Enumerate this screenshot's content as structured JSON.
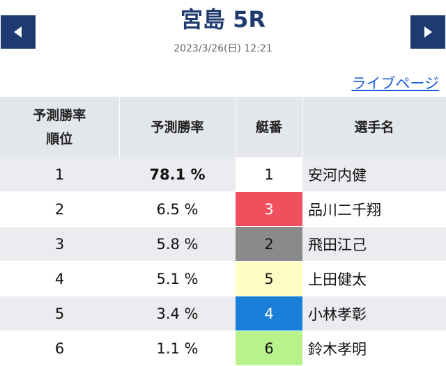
{
  "header": {
    "title": "宮島 5R",
    "datetime": "2023/3/26(日) 12:21",
    "prev_icon": "arrow-left-icon",
    "next_icon": "arrow-right-icon"
  },
  "live_link": "ライブページ",
  "table": {
    "headers": {
      "rank_line1": "予測勝率",
      "rank_line2": "順位",
      "rate": "予測勝率",
      "boat": "艇番",
      "name": "選手名"
    },
    "rows": [
      {
        "rank": "1",
        "rate": "78.1 %",
        "boat": "1",
        "name": "安河内健",
        "boat_color": "#ffffff",
        "boat_text_color": "#111111"
      },
      {
        "rank": "2",
        "rate": "6.5 %",
        "boat": "3",
        "name": "品川二千翔",
        "boat_color": "#f0505d",
        "boat_text_color": "#ffffff"
      },
      {
        "rank": "3",
        "rate": "5.8 %",
        "boat": "2",
        "name": "飛田江己",
        "boat_color": "#8a8a8a",
        "boat_text_color": "#111111"
      },
      {
        "rank": "4",
        "rate": "5.1 %",
        "boat": "5",
        "name": "上田健太",
        "boat_color": "#fffdc4",
        "boat_text_color": "#111111"
      },
      {
        "rank": "5",
        "rate": "3.4 %",
        "boat": "4",
        "name": "小林孝彰",
        "boat_color": "#1a7fd9",
        "boat_text_color": "#ffffff"
      },
      {
        "rank": "6",
        "rate": "1.1 %",
        "boat": "6",
        "name": "鈴木孝明",
        "boat_color": "#b8f28a",
        "boat_text_color": "#111111"
      }
    ]
  },
  "colors": {
    "nav": "#1f3a6e",
    "title": "#1f3a6e",
    "link": "#1a5fd6",
    "header_bg": "#e3e6eb",
    "row_shade": "#ebecef"
  }
}
